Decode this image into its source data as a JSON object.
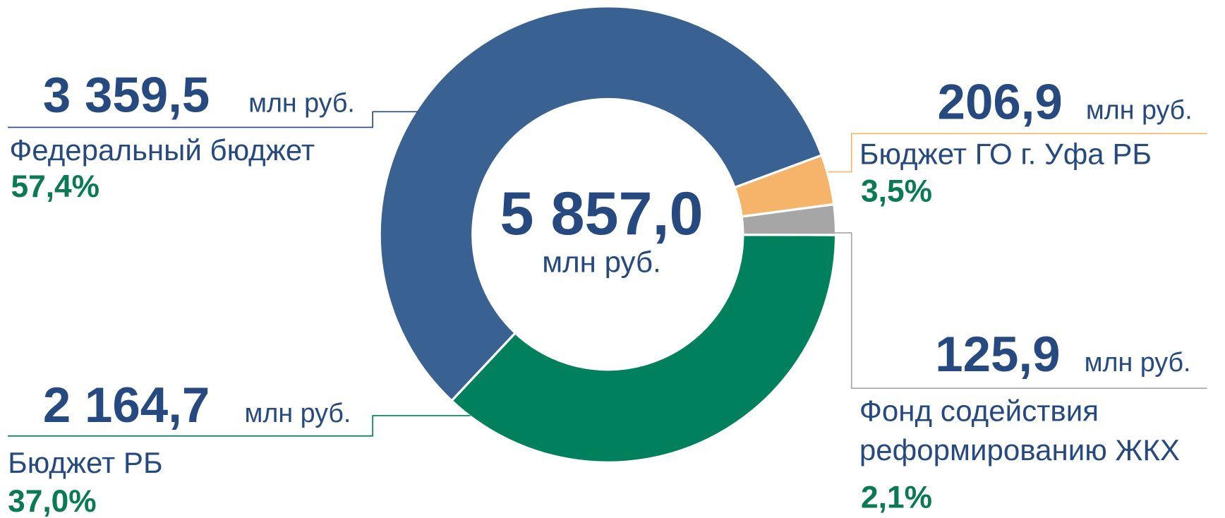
{
  "chart_data": {
    "type": "pie",
    "categories": [
      "Федеральный бюджет",
      "Бюджет ГО г. Уфа РБ",
      "Фонд содействия реформированию ЖКХ",
      "Бюджет РБ"
    ],
    "values": [
      3359.5,
      206.9,
      125.9,
      2164.7
    ],
    "value_labels": [
      "3 359,5",
      "206,9",
      "125,9",
      "2 164,7"
    ],
    "percents": [
      57.4,
      3.5,
      2.1,
      37.0
    ],
    "percent_labels": [
      "57,4%",
      "3,5%",
      "2,1%",
      "37,0%"
    ],
    "colors": [
      "#396192",
      "#f5b46a",
      "#a6a6a6",
      "#00805c"
    ],
    "unit": "млн руб.",
    "total": 5857.0,
    "total_label": "5 857,0"
  }
}
